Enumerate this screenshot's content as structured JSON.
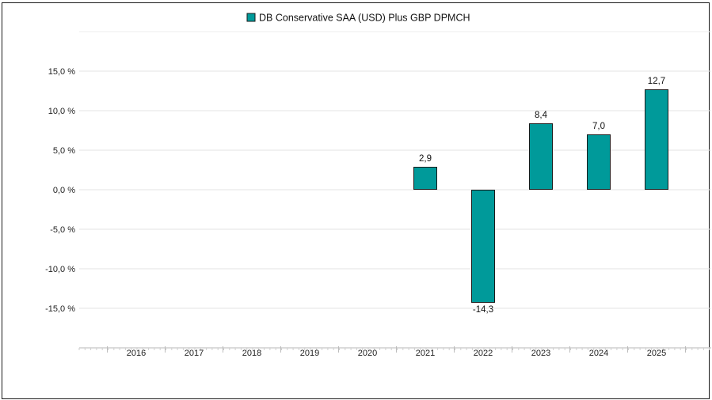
{
  "chart_data": {
    "type": "bar",
    "categories": [
      "2016",
      "2017",
      "2018",
      "2019",
      "2020",
      "2021",
      "2022",
      "2023",
      "2024",
      "2025"
    ],
    "series": [
      {
        "name": "DB Conservative SAA (USD) Plus GBP DPMCH",
        "values": [
          null,
          null,
          null,
          null,
          null,
          2.9,
          -14.3,
          8.4,
          7.0,
          12.7
        ],
        "labels": [
          "",
          "",
          "",
          "",
          "",
          "2,9",
          "-14,3",
          "8,4",
          "7,0",
          "12,7"
        ],
        "color": "#009a9a"
      }
    ],
    "yticks": [
      15,
      10,
      5,
      0,
      -5,
      -10,
      -15
    ],
    "ytick_labels": [
      "15,0 %",
      "10,0 %",
      "5,0 %",
      "0,0 %",
      "-5,0 %",
      "-10,0 %",
      "-15,0 %"
    ],
    "ylim": [
      -20,
      20
    ],
    "legend_position": "top",
    "grid": true,
    "title": "",
    "xlabel": "",
    "ylabel": ""
  }
}
